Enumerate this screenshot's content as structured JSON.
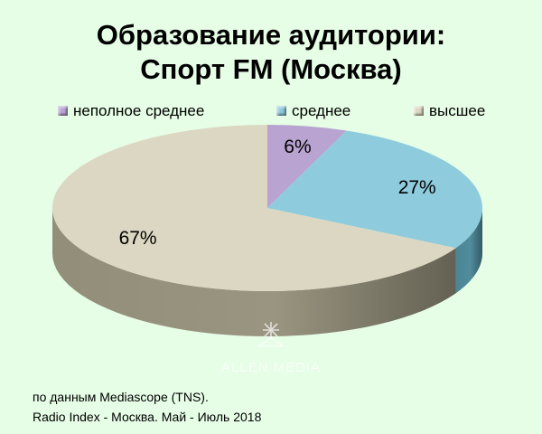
{
  "header": {
    "title_line1": "Образование аудитории:",
    "title_line2": "Спорт FM (Москва)"
  },
  "chart_data": {
    "type": "pie",
    "title": "Образование аудитории: Спорт FM (Москва)",
    "categories": [
      "неполное  среднее",
      "среднее",
      "высшее"
    ],
    "values": [
      6,
      27,
      67
    ],
    "labels": [
      "6%",
      "27%",
      "67%"
    ],
    "colors": [
      "#b8a3d1",
      "#8ecbdc",
      "#dcd7c2"
    ],
    "side_colors": [
      "#7a6993",
      "#4f8c9c",
      "#9a9580"
    ],
    "legend_position": "top",
    "three_d": true
  },
  "watermark": {
    "text": "ALLEN MEDIA"
  },
  "footer": {
    "source_line1": "по данным Mediascope (TNS).",
    "source_line2": "Radio Index - Москва. Май - Июль 2018"
  }
}
